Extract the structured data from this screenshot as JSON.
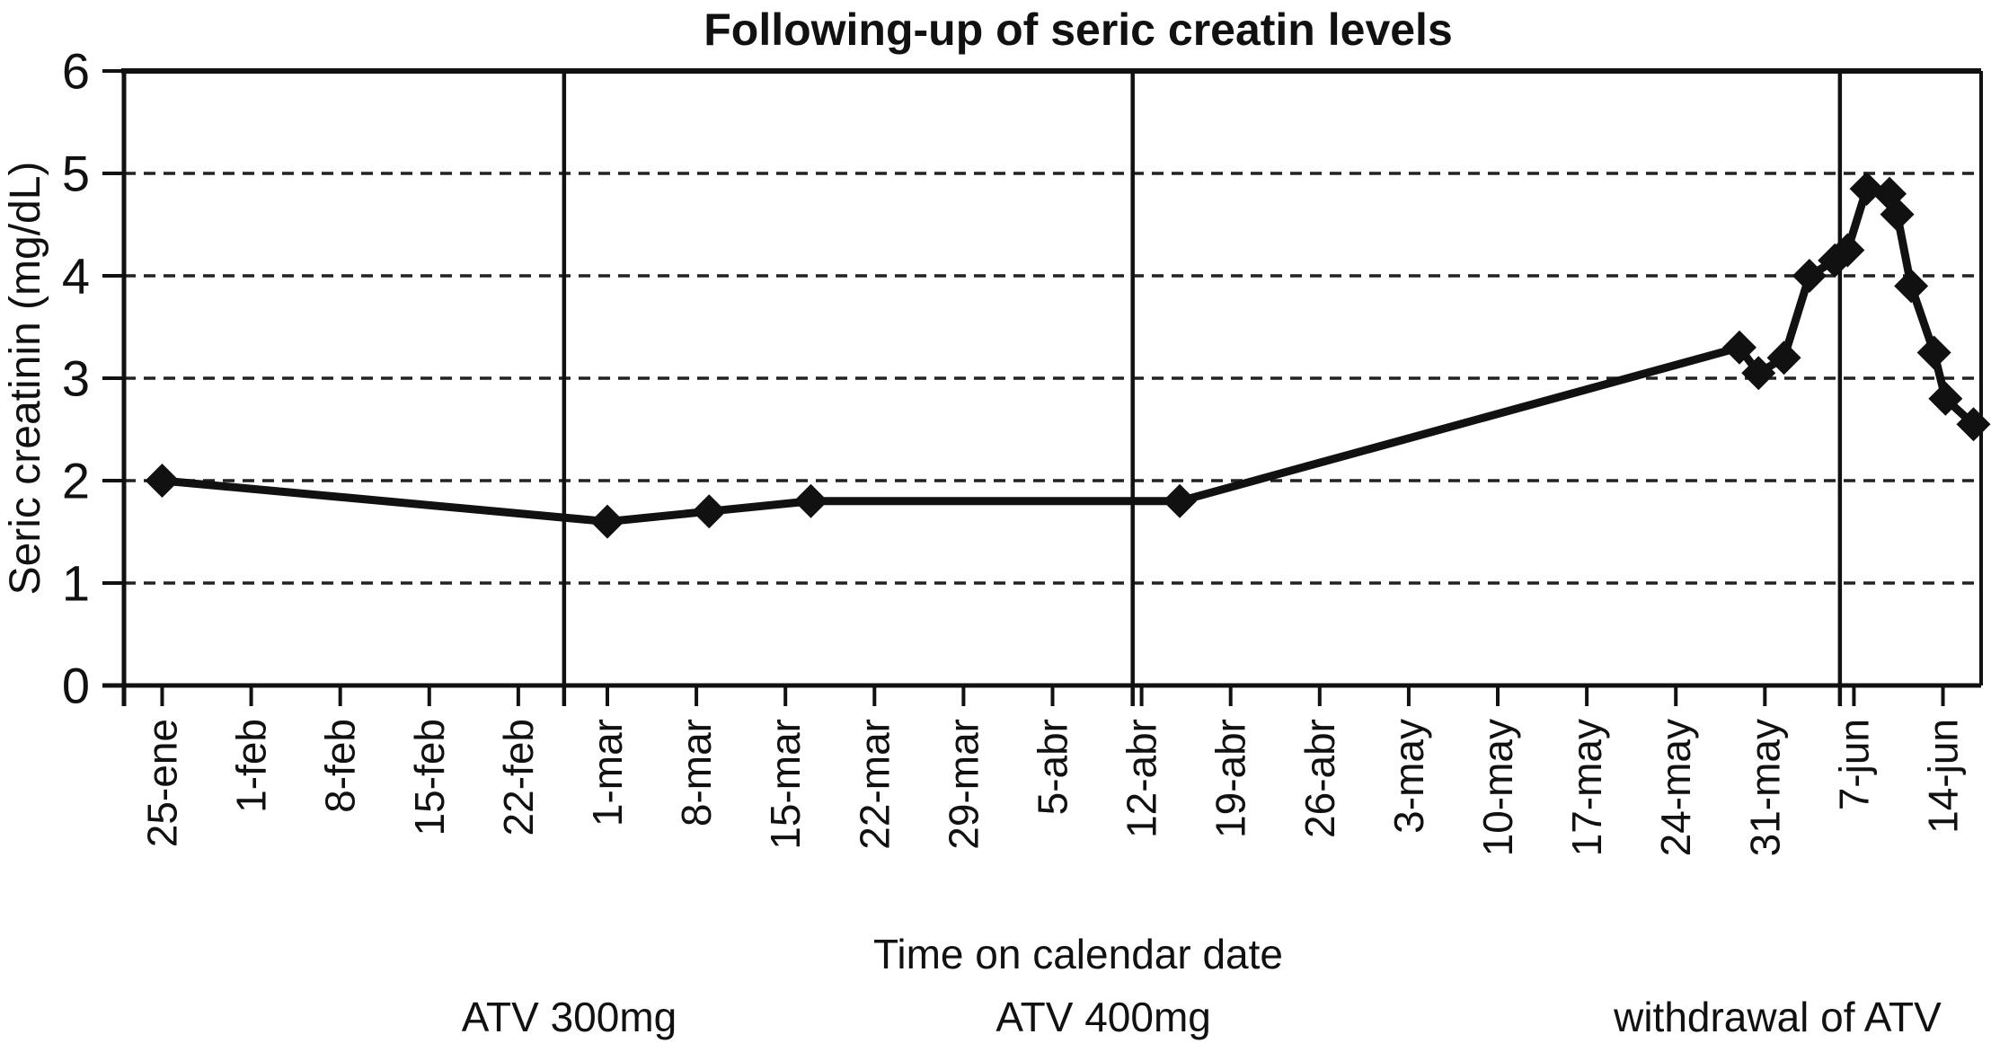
{
  "title": "Following-up of seric creatin levels",
  "y_axis": {
    "label": "Seric creatinin (mg/dL)",
    "tick_labels": [
      "0",
      "1",
      "2",
      "3",
      "4",
      "5",
      "6"
    ],
    "min": 0,
    "max": 6
  },
  "x_axis": {
    "label": "Time on calendar date",
    "tick_labels": [
      "25-ene",
      "1-feb",
      "8-feb",
      "15-feb",
      "22-feb",
      "1-mar",
      "8-mar",
      "15-mar",
      "22-mar",
      "29-mar",
      "5-abr",
      "12-abr",
      "19-abr",
      "26-abr",
      "3-may",
      "10-may",
      "17-may",
      "24-may",
      "31-may",
      "7-jun",
      "14-jun"
    ],
    "tick_interval_days": 7
  },
  "regions": [
    {
      "label": "ATV 300mg",
      "center_day": 32
    },
    {
      "label": "ATV 400mg",
      "center_day": 74
    },
    {
      "label": "withdrawal of ATV",
      "center_day": 127
    }
  ],
  "chart_data": {
    "type": "line",
    "title": "Following-up of seric creatin levels",
    "xlabel": "Time on calendar date",
    "ylabel": "Seric creatinin (mg/dL)",
    "ylim": [
      0,
      6
    ],
    "y_gridlines_dashed": [
      1,
      2,
      3,
      4,
      5
    ],
    "grid": "horizontal-dashed",
    "legend": "none",
    "marker": "diamond",
    "x_unit": "days since 25-ene",
    "x_tick_days": [
      0,
      7,
      14,
      21,
      28,
      35,
      42,
      49,
      56,
      63,
      70,
      77,
      84,
      91,
      98,
      105,
      112,
      119,
      126,
      133,
      140
    ],
    "phase_dividers_days": [
      31.6,
      76.3,
      131.9
    ],
    "series": [
      {
        "name": "Seric creatinin (mg/dL)",
        "points": [
          [
            0,
            2.0
          ],
          [
            35,
            1.6
          ],
          [
            43,
            1.7
          ],
          [
            51,
            1.8
          ],
          [
            80,
            1.8
          ],
          [
            124,
            3.3
          ],
          [
            125.5,
            3.05
          ],
          [
            127.5,
            3.2
          ],
          [
            129.5,
            4.0
          ],
          [
            131.5,
            4.15
          ],
          [
            132.5,
            4.25
          ],
          [
            134,
            4.85
          ],
          [
            135.8,
            4.8
          ],
          [
            136.4,
            4.6
          ],
          [
            137.5,
            3.9
          ],
          [
            139.3,
            3.25
          ],
          [
            140.2,
            2.8
          ],
          [
            142.4,
            2.55
          ]
        ]
      }
    ]
  },
  "colors": {
    "line": "#111111",
    "grid": "#222222",
    "frame": "#111111",
    "text": "#111111",
    "background": "#ffffff"
  }
}
